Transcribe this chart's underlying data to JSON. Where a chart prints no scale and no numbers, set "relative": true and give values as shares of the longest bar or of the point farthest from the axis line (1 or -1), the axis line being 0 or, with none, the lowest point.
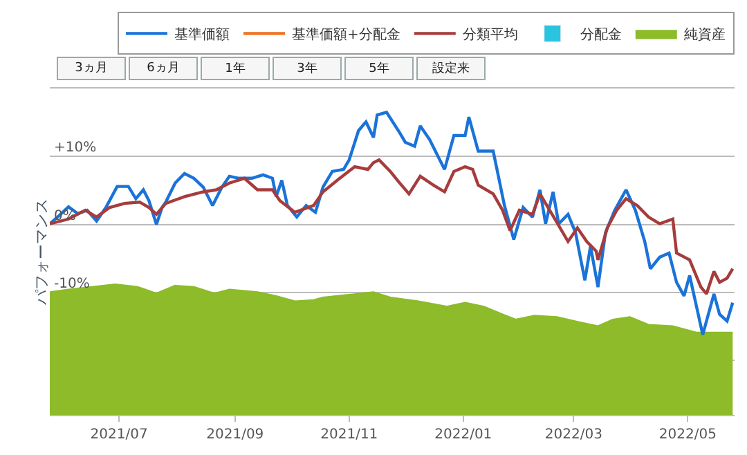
{
  "chart_data": [
    {
      "type": "line",
      "ylabel": "パフォーマンス",
      "annotations": [
        "3ヵ月",
        "6ヵ月",
        "1年",
        "3年",
        "5年",
        "設定来"
      ],
      "xlim": [
        "2021-05-25",
        "2022-05-26"
      ],
      "xticks": [
        {
          "value": "2021-07-01",
          "label": "2021/07"
        },
        {
          "value": "2021-09-01",
          "label": "2021/09"
        },
        {
          "value": "2021-11-01",
          "label": "2021/11"
        },
        {
          "value": "2022-01-01",
          "label": "2022/01"
        },
        {
          "value": "2022-03-01",
          "label": "2022/03"
        },
        {
          "value": "2022-05-01",
          "label": "2022/05"
        }
      ],
      "ylim": [
        -28,
        20
      ],
      "yticks": [
        {
          "value": 20,
          "label": null
        },
        {
          "value": 10,
          "label": "+10%"
        },
        {
          "value": 0,
          "label": "0%"
        },
        {
          "value": -10,
          "label": "-10%"
        },
        {
          "value": -20,
          "label": null
        }
      ],
      "grid": "y",
      "legend": "top right",
      "series": [
        {
          "name": "基準価額",
          "color": "#1a73d9",
          "type": "line",
          "x": [
            "2021-05-25",
            "2021-05-30",
            "2021-06-04",
            "2021-06-09",
            "2021-06-14",
            "2021-06-19",
            "2021-06-24",
            "2021-06-30",
            "2021-07-06",
            "2021-07-10",
            "2021-07-14",
            "2021-07-17",
            "2021-07-21",
            "2021-07-24",
            "2021-07-26",
            "2021-07-31",
            "2021-08-05",
            "2021-08-10",
            "2021-08-15",
            "2021-08-20",
            "2021-08-25",
            "2021-08-29",
            "2021-09-03",
            "2021-09-10",
            "2021-09-16",
            "2021-09-21",
            "2021-09-23",
            "2021-09-26",
            "2021-09-29",
            "2021-10-04",
            "2021-10-09",
            "2021-10-14",
            "2021-10-18",
            "2021-10-23",
            "2021-10-29",
            "2021-11-01",
            "2021-11-06",
            "2021-11-10",
            "2021-11-14",
            "2021-11-16",
            "2021-11-21",
            "2021-11-28",
            "2021-12-01",
            "2021-12-06",
            "2021-12-09",
            "2021-12-14",
            "2021-12-22",
            "2021-12-27",
            "2022-01-02",
            "2022-01-04",
            "2022-01-09",
            "2022-01-17",
            "2022-01-23",
            "2022-01-28",
            "2022-02-02",
            "2022-02-07",
            "2022-02-11",
            "2022-02-14",
            "2022-02-18",
            "2022-02-21",
            "2022-02-26",
            "2022-03-02",
            "2022-03-07",
            "2022-03-10",
            "2022-03-14",
            "2022-03-18",
            "2022-03-23",
            "2022-03-29",
            "2022-04-03",
            "2022-04-08",
            "2022-04-11",
            "2022-04-16",
            "2022-04-21",
            "2022-04-25",
            "2022-04-29",
            "2022-05-02",
            "2022-05-09",
            "2022-05-15",
            "2022-05-18",
            "2022-05-22",
            "2022-05-25"
          ],
          "values": [
            0.1,
            1.3,
            2.6,
            1.6,
            2.1,
            0.5,
            2.5,
            5.6,
            5.6,
            3.8,
            5.1,
            3.5,
            0,
            2.5,
            3.3,
            6.1,
            7.5,
            6.8,
            5.5,
            2.8,
            5.5,
            7.1,
            6.8,
            6.8,
            7.3,
            6.8,
            4.1,
            6.5,
            2.8,
            1.1,
            2.8,
            1.8,
            5.5,
            7.8,
            8.1,
            9.5,
            13.8,
            15.1,
            12.8,
            16.1,
            16.5,
            13.5,
            12.1,
            11.5,
            14.5,
            12.5,
            8.1,
            13.1,
            13.1,
            15.8,
            10.8,
            10.8,
            2.8,
            -2.2,
            2.5,
            1.1,
            5.1,
            0.1,
            4.8,
            0.1,
            1.5,
            -1.2,
            -8.2,
            -3.2,
            -9.2,
            -1.2,
            2.1,
            5.1,
            2.1,
            -2.5,
            -6.5,
            -4.8,
            -4.2,
            -8.5,
            -10.5,
            -7.5,
            -16.2,
            -10.2,
            -13.2,
            -14.2,
            -11.5
          ]
        },
        {
          "name": "基準価額+分配金",
          "color": "#f07020",
          "type": "line"
        },
        {
          "name": "分類平均",
          "color": "#a63c3c",
          "type": "line",
          "x": [
            "2021-05-25",
            "2021-06-04",
            "2021-06-13",
            "2021-06-19",
            "2021-06-26",
            "2021-07-04",
            "2021-07-12",
            "2021-07-17",
            "2021-07-21",
            "2021-07-26",
            "2021-08-05",
            "2021-08-15",
            "2021-08-22",
            "2021-08-29",
            "2021-09-06",
            "2021-09-13",
            "2021-09-21",
            "2021-09-25",
            "2021-10-03",
            "2021-10-13",
            "2021-10-18",
            "2021-10-27",
            "2021-11-04",
            "2021-11-11",
            "2021-11-14",
            "2021-11-17",
            "2021-11-23",
            "2021-11-28",
            "2021-12-03",
            "2021-12-09",
            "2021-12-16",
            "2021-12-22",
            "2021-12-27",
            "2022-01-02",
            "2022-01-06",
            "2022-01-09",
            "2022-01-17",
            "2022-01-22",
            "2022-01-26",
            "2022-01-31",
            "2022-02-07",
            "2022-02-11",
            "2022-02-19",
            "2022-02-26",
            "2022-03-03",
            "2022-03-08",
            "2022-03-13",
            "2022-03-14",
            "2022-03-19",
            "2022-03-24",
            "2022-03-29",
            "2022-04-04",
            "2022-04-10",
            "2022-04-16",
            "2022-04-23",
            "2022-04-25",
            "2022-05-02",
            "2022-05-08",
            "2022-05-11",
            "2022-05-15",
            "2022-05-18",
            "2022-05-22",
            "2022-05-25"
          ],
          "values": [
            0.1,
            0.8,
            2.1,
            1.1,
            2.5,
            3.1,
            3.3,
            2.5,
            1.5,
            3.1,
            4.1,
            4.8,
            5.1,
            6.1,
            6.8,
            5.1,
            5.1,
            3.5,
            1.8,
            2.8,
            4.8,
            6.8,
            8.5,
            8.1,
            9.1,
            9.5,
            7.8,
            6.1,
            4.5,
            7.1,
            5.8,
            4.8,
            7.8,
            8.5,
            8.1,
            5.8,
            4.5,
            2.1,
            -0.9,
            2.1,
            1.5,
            4.5,
            0.8,
            -2.5,
            -0.5,
            -2.5,
            -3.9,
            -5.2,
            -0.5,
            2.1,
            3.8,
            2.8,
            1.1,
            0.1,
            0.8,
            -4.2,
            -5.2,
            -9.2,
            -10.2,
            -6.9,
            -8.5,
            -7.9,
            -6.5
          ]
        },
        {
          "name": "分配金",
          "color": "#29c4e0",
          "type": "bar"
        }
      ]
    },
    {
      "type": "area",
      "relative": true,
      "xlim": [
        "2021-05-25",
        "2022-05-26"
      ],
      "series": [
        {
          "name": "純資産",
          "color": "#8dbb2a",
          "x": [
            "2021-05-25",
            "2021-06-04",
            "2021-06-29",
            "2021-07-11",
            "2021-07-21",
            "2021-07-31",
            "2021-08-10",
            "2021-08-21",
            "2021-08-29",
            "2021-09-13",
            "2021-09-23",
            "2021-10-03",
            "2021-10-13",
            "2021-10-18",
            "2021-11-01",
            "2021-11-14",
            "2021-11-23",
            "2021-12-08",
            "2021-12-23",
            "2022-01-02",
            "2022-01-12",
            "2022-01-22",
            "2022-01-29",
            "2022-02-08",
            "2022-02-20",
            "2022-03-04",
            "2022-03-14",
            "2022-03-22",
            "2022-03-31",
            "2022-04-10",
            "2022-04-23",
            "2022-05-06",
            "2022-05-15",
            "2022-05-25"
          ],
          "values": [
            0.94,
            0.96,
            1.0,
            0.98,
            0.93,
            0.99,
            0.98,
            0.93,
            0.96,
            0.94,
            0.91,
            0.87,
            0.88,
            0.9,
            0.92,
            0.94,
            0.9,
            0.87,
            0.83,
            0.86,
            0.83,
            0.77,
            0.73,
            0.76,
            0.75,
            0.71,
            0.68,
            0.73,
            0.75,
            0.69,
            0.68,
            0.63,
            0.63,
            0.63
          ]
        }
      ]
    }
  ]
}
